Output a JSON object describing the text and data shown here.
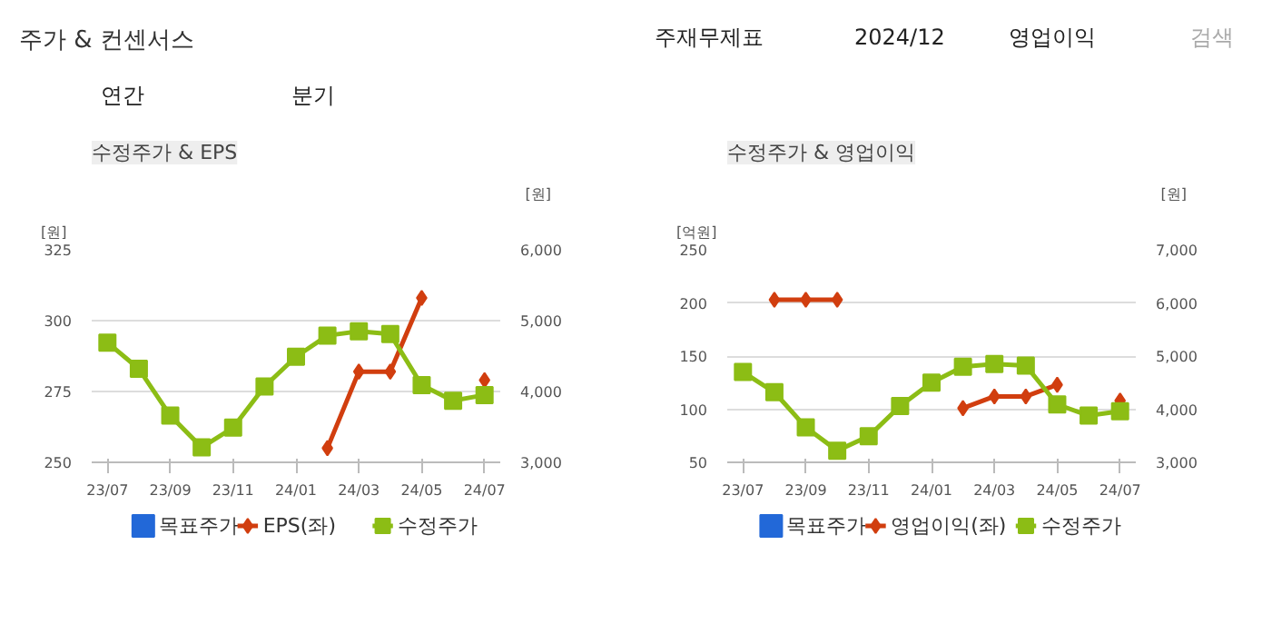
{
  "chart_data": [
    {
      "type": "other",
      "title": "주가 & 컨센서스",
      "annotations": [
        "주재무제표",
        "2024/12",
        "영업이익",
        "검색",
        "연간",
        "분기"
      ]
    },
    {
      "type": "line",
      "title": "수정주가 & EPS",
      "ylabel": "[원]",
      "y2label": "[원]",
      "categories": [
        "23/07",
        null,
        "23/09",
        null,
        "23/11",
        null,
        "24/01",
        null,
        "24/03",
        null,
        "24/05",
        null,
        "24/07"
      ],
      "ylim": [
        250,
        325
      ],
      "yticks": [
        250,
        275,
        300,
        325
      ],
      "y2lim": [
        3000,
        6000
      ],
      "y2ticks": [
        {
          "value": 3000,
          "label": "3,000"
        },
        {
          "value": 4000,
          "label": "4,000"
        },
        {
          "value": 5000,
          "label": "5,000"
        },
        {
          "value": 6000,
          "label": "6,000"
        }
      ],
      "grid": "y",
      "legend": "bottom",
      "line_style": "solid",
      "series": [
        {
          "name": "목표주가",
          "marker": "square",
          "color": "#2268d8",
          "values": [
            null,
            null,
            null,
            null,
            null,
            null,
            null,
            null,
            null,
            null,
            null,
            null,
            null
          ]
        },
        {
          "name": "EPS(좌)",
          "marker": "diamond",
          "color": "#d13e0f",
          "values": [
            null,
            null,
            null,
            null,
            null,
            null,
            null,
            255,
            282,
            282,
            308,
            null,
            279
          ]
        },
        {
          "name": "수정주가",
          "marker": "square",
          "color": "#8cbd15",
          "axis": "y2",
          "values": [
            4690,
            4320,
            3660,
            3210,
            3490,
            4070,
            4490,
            4790,
            4850,
            4810,
            4090,
            3870,
            3950
          ]
        }
      ]
    },
    {
      "type": "line",
      "title": "수정주가 & 영업이익",
      "ylabel": "[억원]",
      "y2label": "[원]",
      "categories": [
        "23/07",
        null,
        "23/09",
        null,
        "23/11",
        null,
        "24/01",
        null,
        "24/03",
        null,
        "24/05",
        null,
        "24/07"
      ],
      "ylim": [
        50,
        250
      ],
      "yticks": [
        50,
        100,
        150,
        200,
        250
      ],
      "y2lim": [
        3000,
        7000
      ],
      "y2ticks": [
        {
          "value": 3000,
          "label": "3,000"
        },
        {
          "value": 4000,
          "label": "4,000"
        },
        {
          "value": 5000,
          "label": "5,000"
        },
        {
          "value": 6000,
          "label": "6,000"
        },
        {
          "value": 7000,
          "label": "7,000"
        }
      ],
      "grid": "y",
      "legend": "bottom",
      "line_style": "solid",
      "series": [
        {
          "name": "목표주가",
          "marker": "square",
          "color": "#2268d8",
          "values": [
            null,
            null,
            null,
            null,
            null,
            null,
            null,
            null,
            null,
            null,
            null,
            null,
            null
          ]
        },
        {
          "name": "영업이익(좌)",
          "marker": "diamond",
          "color": "#d13e0f",
          "values": [
            null,
            203,
            203,
            203,
            null,
            null,
            null,
            101,
            112,
            112,
            123,
            null,
            108
          ]
        },
        {
          "name": "수정주가",
          "marker": "square",
          "color": "#8cbd15",
          "axis": "y2",
          "values": [
            4700,
            4320,
            3660,
            3220,
            3490,
            4060,
            4500,
            4800,
            4850,
            4820,
            4090,
            3880,
            3960
          ]
        }
      ]
    }
  ]
}
